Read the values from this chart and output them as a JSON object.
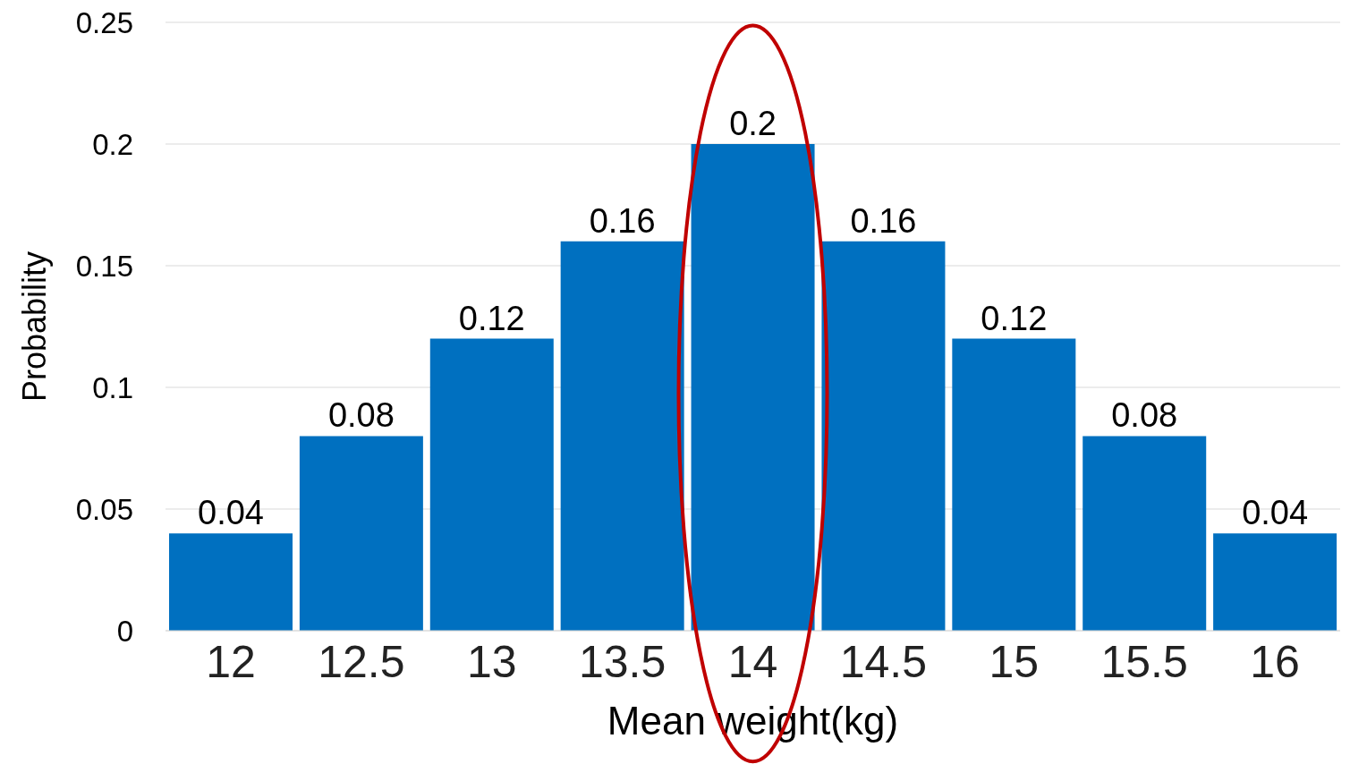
{
  "chart_data": {
    "type": "bar",
    "xlabel": "Mean weight(kg)",
    "ylabel": "Probability",
    "categories": [
      "12",
      "12.5",
      "13",
      "13.5",
      "14",
      "14.5",
      "15",
      "15.5",
      "16"
    ],
    "values": [
      0.04,
      0.08,
      0.12,
      0.16,
      0.2,
      0.16,
      0.12,
      0.08,
      0.04
    ],
    "color": "#0070c0",
    "ylim": [
      0,
      0.25
    ],
    "yticks": [
      0,
      0.05,
      0.1,
      0.15,
      0.2,
      0.25
    ],
    "grid": "y",
    "data_labels": true
  }
}
